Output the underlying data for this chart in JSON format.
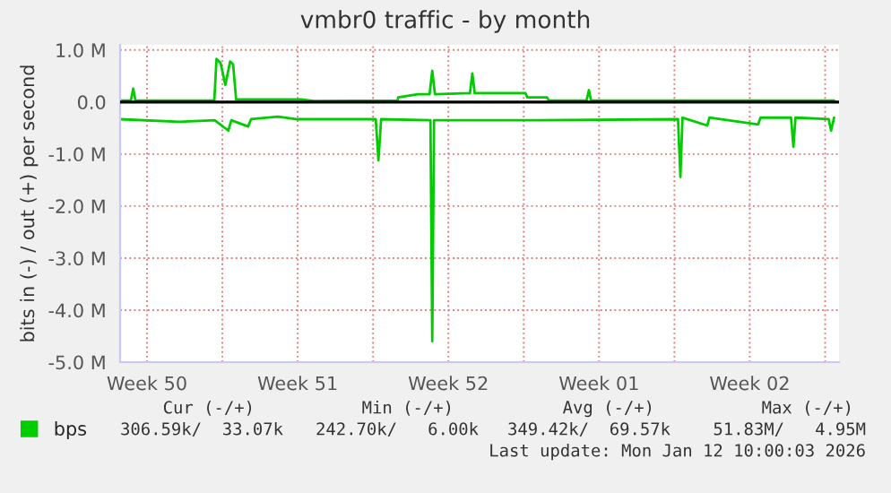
{
  "chart_data": {
    "type": "line",
    "title": "vmbr0 traffic - by month",
    "ylabel": "bits in (-) / out (+) per second",
    "xlim": [
      "2025-12-10T06:00",
      "2026-01-12T15:30"
    ],
    "ylim": [
      -5.0,
      1.1
    ],
    "xticks": [
      {
        "value": "2025-12-11T12:00",
        "label": "Week 50"
      },
      {
        "value": "2025-12-15",
        "label": null
      },
      {
        "value": "2025-12-18T12:00",
        "label": "Week 51"
      },
      {
        "value": "2025-12-22",
        "label": null
      },
      {
        "value": "2025-12-25T12:00",
        "label": "Week 52"
      },
      {
        "value": "2025-12-29",
        "label": null
      },
      {
        "value": "2026-01-01T12:00",
        "label": "Week 01"
      },
      {
        "value": "2026-01-05",
        "label": null
      },
      {
        "value": "2026-01-08T12:00",
        "label": "Week 02"
      },
      {
        "value": "2026-01-12",
        "label": null
      }
    ],
    "yticks": [
      {
        "value": 1.0,
        "label": "1.0 M"
      },
      {
        "value": 0.0,
        "label": "0.0"
      },
      {
        "value": -1.0,
        "label": "-1.0 M"
      },
      {
        "value": -2.0,
        "label": "-2.0 M"
      },
      {
        "value": -3.0,
        "label": "-3.0 M"
      },
      {
        "value": -4.0,
        "label": "-4.0 M"
      },
      {
        "value": -5.0,
        "label": "-5.0 M"
      }
    ],
    "grid": true,
    "legend": "bottom",
    "marker": "none",
    "line_style": "solid",
    "ref_lines": [
      {
        "axis": "y",
        "value": 0,
        "color": "#000000"
      }
    ],
    "series": [
      {
        "name": "bps",
        "color": "#00cc00",
        "x": [
          "2025-12-10T06:00",
          "2025-12-10T18:00",
          "2025-12-10T20:40",
          "2025-12-10T23:00",
          "2025-12-14T15:00",
          "2025-12-14T17:30",
          "2025-12-14T22:00",
          "2025-12-15T03:20",
          "2025-12-15T08:40",
          "2025-12-15T12:00",
          "2025-12-15T15:20",
          "2025-12-18T16:00",
          "2025-12-19T06:00",
          "2025-12-23T03:20",
          "2025-12-23T04:00",
          "2025-12-24T02:00",
          "2025-12-24T15:00",
          "2025-12-24T18:00",
          "2025-12-24T21:00",
          "2025-12-26T12:00",
          "2025-12-26T14:40",
          "2025-12-26T17:20",
          "2025-12-29T02:00",
          "2025-12-29T04:00",
          "2025-12-30T02:00",
          "2025-12-30T04:00",
          "2025-12-31T22:00",
          "2026-01-01T00:40",
          "2026-01-01T03:00",
          "2026-01-12T10:00"
        ],
        "values": [
          0.03,
          0.03,
          0.26,
          0.03,
          0.03,
          0.83,
          0.75,
          0.33,
          0.78,
          0.72,
          0.05,
          0.05,
          0.02,
          0.03,
          0.09,
          0.15,
          0.15,
          0.6,
          0.15,
          0.17,
          0.55,
          0.17,
          0.17,
          0.09,
          0.09,
          0.03,
          0.03,
          0.23,
          0.03,
          0.03
        ]
      },
      {
        "color": "#00cc00",
        "x": [
          "2025-12-10T06:00",
          "2025-12-13T00:00",
          "2025-12-14T15:30",
          "2025-12-15T06:40",
          "2025-12-15T10:00",
          "2025-12-16T04:40",
          "2025-12-16T08:00",
          "2025-12-17T14:00",
          "2025-12-18T10:00",
          "2025-12-22T03:00",
          "2025-12-22T06:00",
          "2025-12-22T09:00",
          "2025-12-24T16:00",
          "2025-12-24T18:00",
          "2025-12-24T20:00",
          "2025-12-29T16:00",
          "2026-01-05T04:00",
          "2026-01-05T06:40",
          "2026-01-05T09:00",
          "2026-01-06T12:40",
          "2026-01-06T15:00",
          "2026-01-08T21:20",
          "2026-01-09T00:00",
          "2026-01-10T10:00",
          "2026-01-10T12:40",
          "2026-01-10T15:00",
          "2026-01-12T04:00",
          "2026-01-12T06:40",
          "2026-01-12T10:00"
        ],
        "values": [
          -0.33,
          -0.38,
          -0.35,
          -0.55,
          -0.35,
          -0.47,
          -0.33,
          -0.28,
          -0.33,
          -0.33,
          -1.12,
          -0.33,
          -0.35,
          -4.6,
          -0.35,
          -0.35,
          -0.33,
          -1.44,
          -0.3,
          -0.45,
          -0.3,
          -0.43,
          -0.3,
          -0.3,
          -0.86,
          -0.3,
          -0.33,
          -0.55,
          -0.3
        ]
      }
    ],
    "annotations": [
      "Cur (-/+)",
      "Min (-/+)",
      "Avg (-/+)",
      "Max (-/+)",
      "306.59k/  33.07k",
      "242.70k/   6.00k",
      "349.42k/  69.57k",
      "51.83M/   4.95M",
      "Last update: Mon Jan 12 10:00:03 2026"
    ]
  }
}
